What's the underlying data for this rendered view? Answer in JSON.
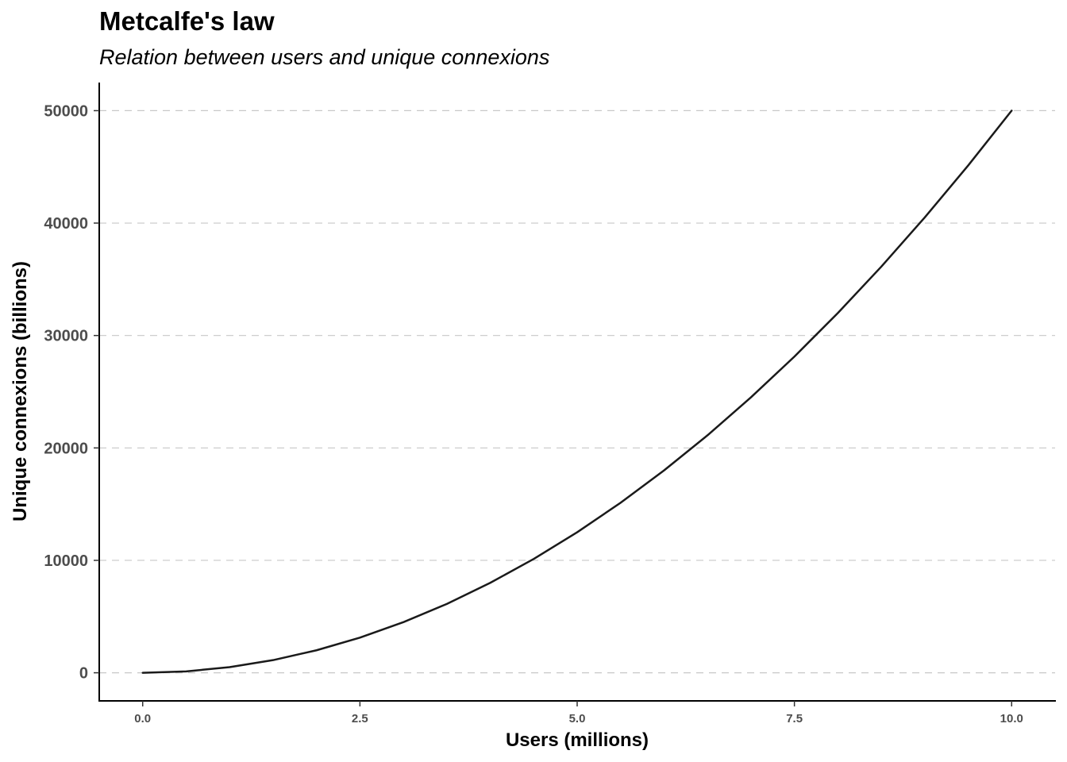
{
  "chart_data": {
    "type": "line",
    "title": "Metcalfe's law",
    "subtitle": "Relation between users and unique connexions",
    "xlabel": "Users (millions)",
    "ylabel": "Unique connexions (billions)",
    "xlim": [
      -0.5,
      10.5
    ],
    "ylim": [
      -2500,
      52500
    ],
    "x_ticks": [
      0,
      2.5,
      5,
      7.5,
      10
    ],
    "x_tick_labels": [
      "0.0",
      "2.5",
      "5.0",
      "7.5",
      "10.0"
    ],
    "y_ticks": [
      0,
      10000,
      20000,
      30000,
      40000,
      50000
    ],
    "y_tick_labels": [
      "0",
      "10000",
      "20000",
      "30000",
      "40000",
      "50000"
    ],
    "grid": "horizontal-dashed",
    "series": [
      {
        "color": "#1a1a1a",
        "x": [
          0,
          0.5,
          1,
          1.5,
          2,
          2.5,
          3,
          3.5,
          4,
          4.5,
          5,
          5.5,
          6,
          6.5,
          7,
          7.5,
          8,
          8.5,
          9,
          9.5,
          10
        ],
        "y": [
          0,
          125,
          500,
          1125,
          2000,
          3125,
          4500,
          6125,
          8000,
          10125,
          12500,
          15125,
          18000,
          21125,
          24500,
          28125,
          32000,
          36125,
          40500,
          45125,
          50000
        ]
      }
    ]
  }
}
